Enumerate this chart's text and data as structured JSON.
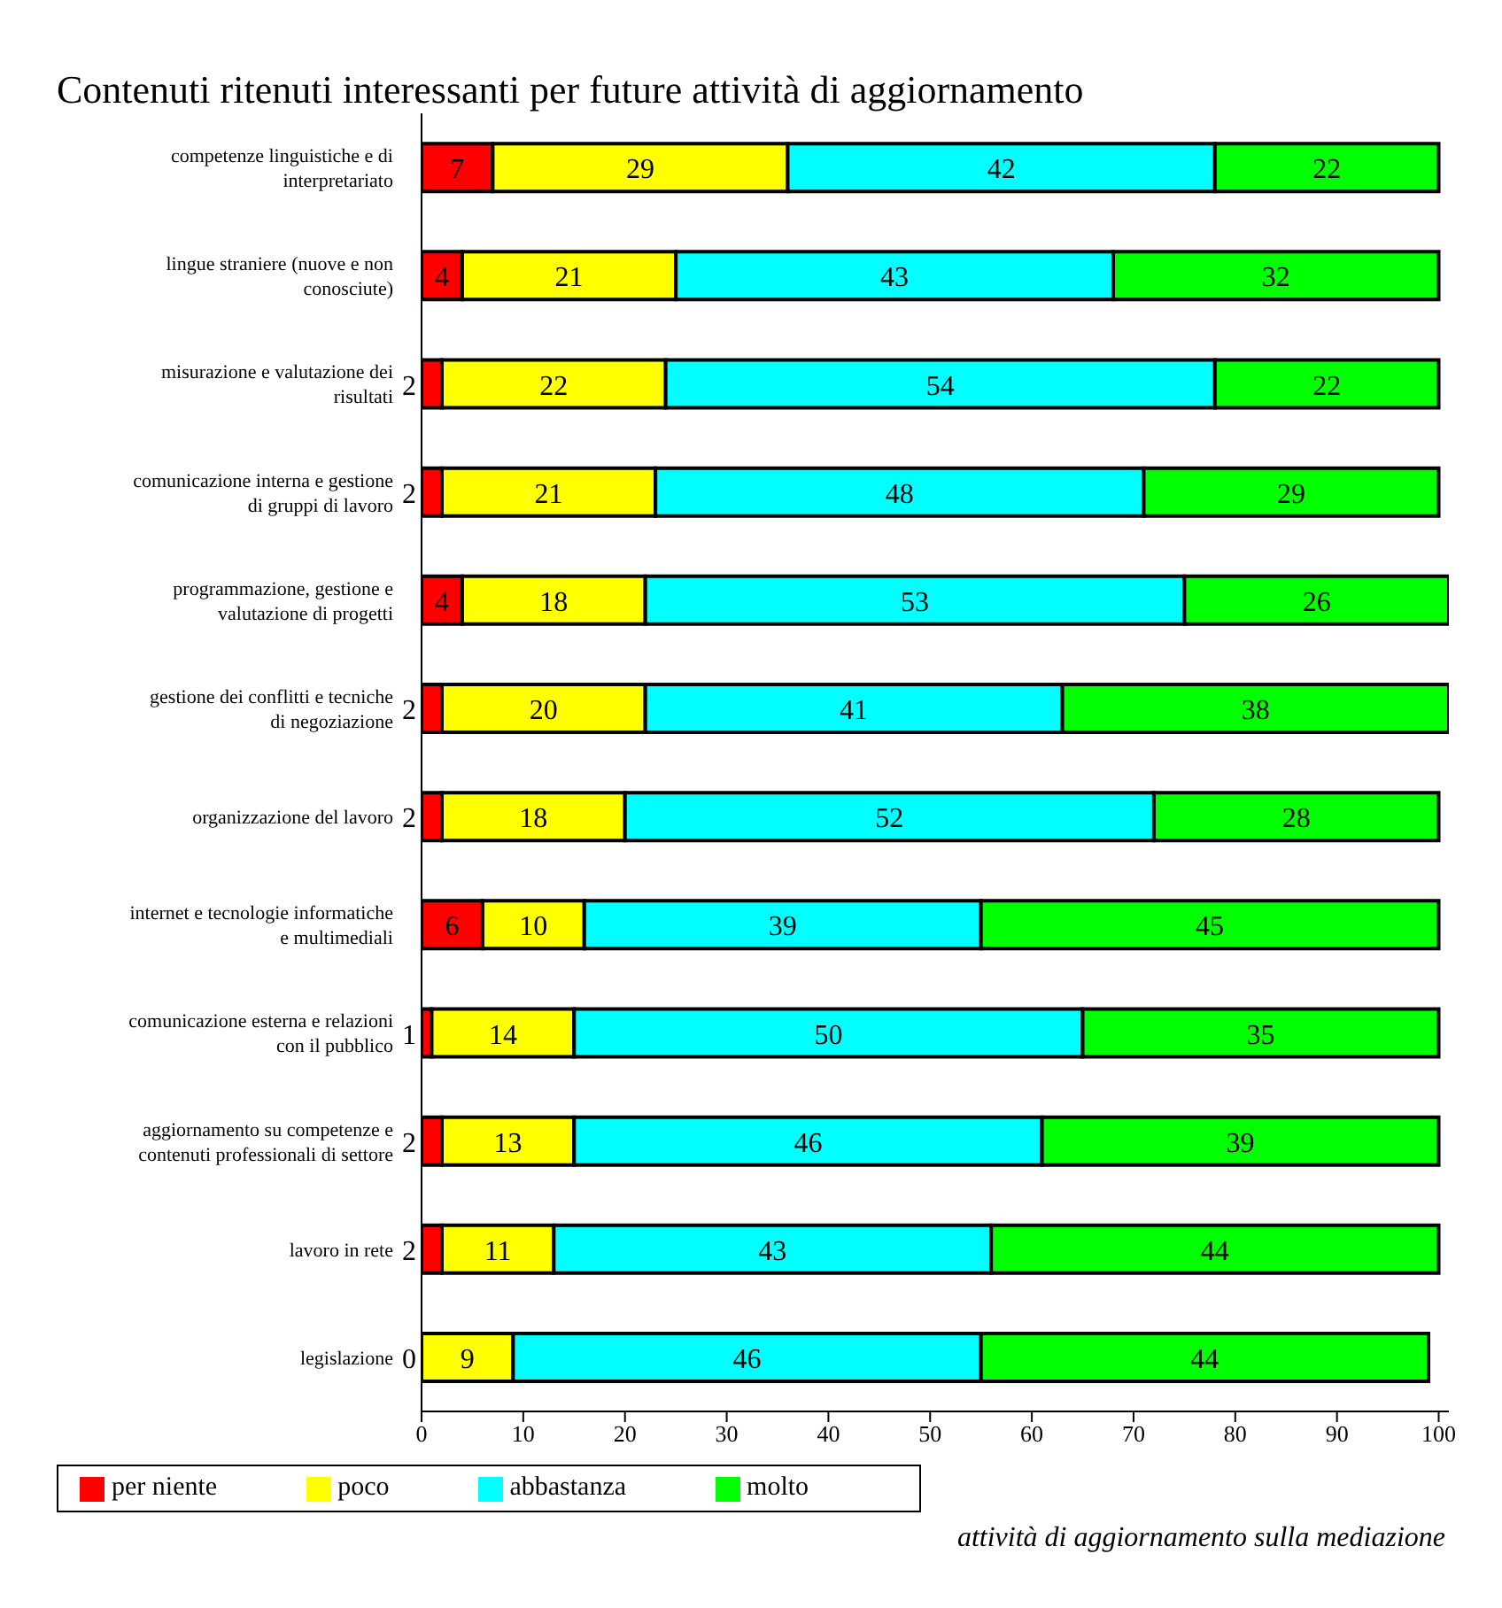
{
  "chart_data": {
    "type": "bar",
    "orientation": "horizontal",
    "stacked": true,
    "title": "Contenuti ritenuti interessanti per future attività di aggiornamento",
    "categories": [
      "competenze linguistiche e di interpretariato",
      "lingue straniere (nuove e non conosciute)",
      "misurazione e valutazione dei risultati",
      "comunicazione interna e gestione di gruppi di lavoro",
      "programmazione, gestione e valutazione di progetti",
      "gestione dei conflitti e tecniche di negoziazione",
      "organizzazione del lavoro",
      "internet e tecnologie informatiche e multimediali",
      "comunicazione esterna e relazioni con il pubblico",
      "aggiornamento su competenze e contenuti professionali di settore",
      "lavoro in rete",
      "legislazione"
    ],
    "series": [
      {
        "name": "per niente",
        "color": "#ff0000",
        "values": [
          7,
          4,
          2,
          2,
          4,
          2,
          2,
          6,
          1,
          2,
          2,
          0
        ]
      },
      {
        "name": "poco",
        "color": "#ffff00",
        "values": [
          29,
          21,
          22,
          21,
          18,
          20,
          18,
          10,
          14,
          13,
          11,
          9
        ]
      },
      {
        "name": "abbastanza",
        "color": "#00ffff",
        "values": [
          42,
          43,
          54,
          48,
          53,
          41,
          52,
          39,
          50,
          46,
          43,
          46
        ]
      },
      {
        "name": "molto",
        "color": "#00ff00",
        "values": [
          22,
          32,
          22,
          29,
          26,
          38,
          28,
          45,
          35,
          39,
          44,
          44
        ]
      }
    ],
    "xlim": [
      0,
      101
    ],
    "xticks": [
      0,
      10,
      20,
      30,
      40,
      50,
      60,
      70,
      80,
      90,
      100
    ],
    "grid": false,
    "legend": "bottom left",
    "data_labels": true,
    "annotations": [
      "attività di aggiornamento sulla mediazione"
    ]
  }
}
